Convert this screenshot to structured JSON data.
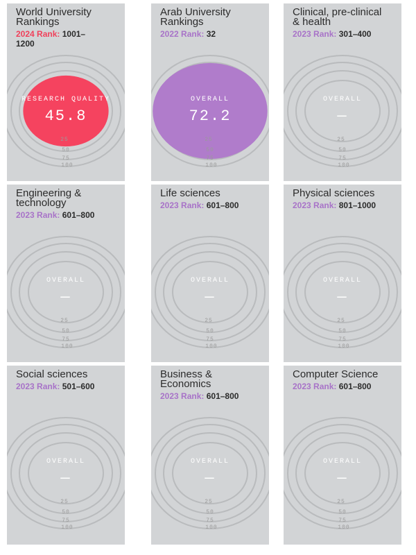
{
  "cards": [
    {
      "title": "World University Rankings",
      "rank_label": "2024 Rank:",
      "rank_value": "1001–1200",
      "label_color": "#f0405a",
      "metric_label": "RESEARCH QUALITY",
      "metric_value": "45.8",
      "score_fraction": 0.458,
      "fill_color": "#f5435f"
    },
    {
      "title": "Arab University Rankings",
      "rank_label": "2022 Rank:",
      "rank_value": "32",
      "label_color": "#a873c8",
      "metric_label": "OVERALL",
      "metric_value": "72.2",
      "score_fraction": 0.722,
      "fill_color": "#b07ccb"
    },
    {
      "title": "Clinical, pre-clinical & health",
      "rank_label": "2023 Rank:",
      "rank_value": "301–400",
      "label_color": "#a873c8",
      "metric_label": "OVERALL",
      "metric_value": "—"
    },
    {
      "title": "Engineering & technology",
      "rank_label": "2023 Rank:",
      "rank_value": "601–800",
      "label_color": "#a873c8",
      "metric_label": "OVERALL",
      "metric_value": "—"
    },
    {
      "title": "Life sciences",
      "rank_label": "2023 Rank:",
      "rank_value": "601–800",
      "label_color": "#a873c8",
      "metric_label": "OVERALL",
      "metric_value": "—"
    },
    {
      "title": "Physical sciences",
      "rank_label": "2023 Rank:",
      "rank_value": "801–1000",
      "label_color": "#a873c8",
      "metric_label": "OVERALL",
      "metric_value": "—"
    },
    {
      "title": "Social sciences",
      "rank_label": "2023 Rank:",
      "rank_value": "501–600",
      "label_color": "#a873c8",
      "metric_label": "OVERALL",
      "metric_value": "—"
    },
    {
      "title": "Business & Economics",
      "rank_label": "2023 Rank:",
      "rank_value": "601–800",
      "label_color": "#a873c8",
      "metric_label": "OVERALL",
      "metric_value": "—"
    },
    {
      "title": "Computer Science",
      "rank_label": "2023 Rank:",
      "rank_value": "601–800",
      "label_color": "#a873c8",
      "metric_label": "OVERALL",
      "metric_value": "—"
    }
  ],
  "scale_labels": [
    "25",
    "50",
    "75",
    "100"
  ]
}
